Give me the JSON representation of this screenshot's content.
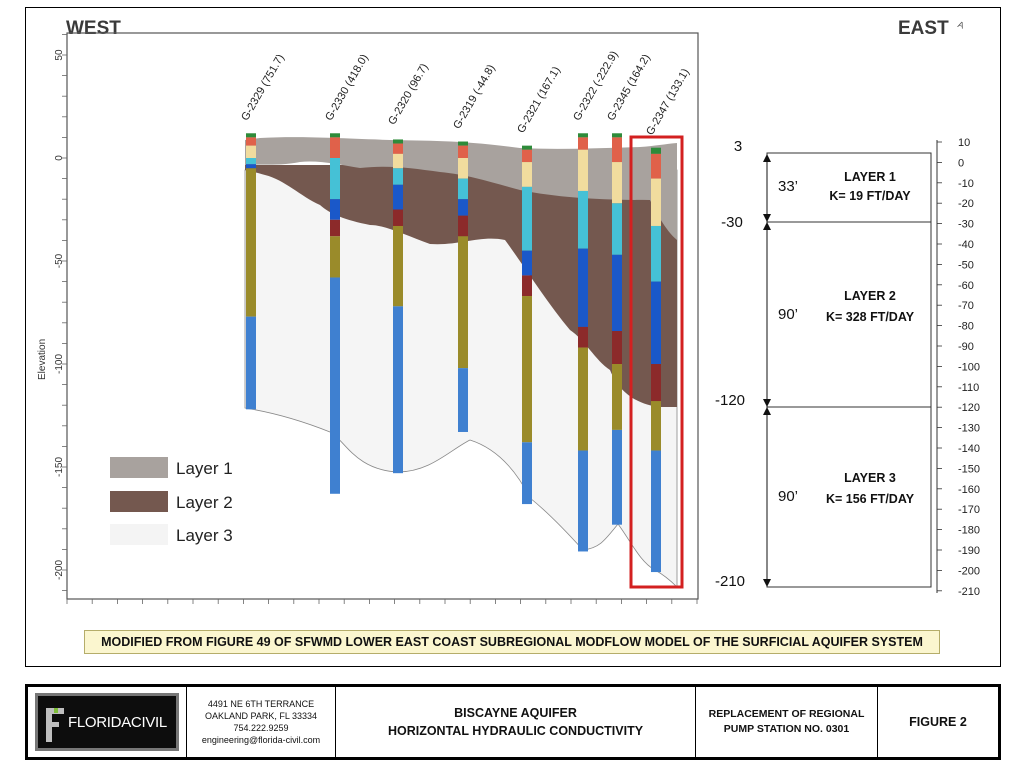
{
  "header": {
    "west": "WEST",
    "east": "EAST",
    "north_mark": "A"
  },
  "y_axis": {
    "label": "Elevation",
    "ticks": [
      50,
      0,
      -50,
      -100,
      -150,
      -200
    ]
  },
  "wells": [
    {
      "label": "G-2329 (751.7)",
      "top": 10,
      "bottom": -122,
      "colors": [
        [
          "#2e8b3a",
          12,
          10
        ],
        [
          "#e0614a",
          10,
          6
        ],
        [
          "#f1dc9e",
          6,
          0
        ],
        [
          "#45c1d6",
          0,
          -3
        ],
        [
          "#1a58c9",
          -3,
          -5
        ],
        [
          "#9a8b2a",
          -5,
          -77
        ],
        [
          "#3f80d0",
          -77,
          -122
        ]
      ]
    },
    {
      "label": "G-2330 (418.0)",
      "top": 10,
      "bottom": -163,
      "colors": [
        [
          "#2e8b3a",
          12,
          10
        ],
        [
          "#e0614a",
          10,
          0
        ],
        [
          "#f1dc9e",
          0,
          -10
        ],
        [
          "#45c1d6",
          0,
          -20
        ],
        [
          "#1a58c9",
          -20,
          -30
        ],
        [
          "#8c2a2a",
          -30,
          -38
        ],
        [
          "#9a8b2a",
          -38,
          -58
        ],
        [
          "#3f80d0",
          -58,
          -163
        ]
      ]
    },
    {
      "label": "G-2320 (96.7)",
      "top": 8,
      "bottom": -153,
      "colors": [
        [
          "#2e8b3a",
          9,
          7
        ],
        [
          "#e0614a",
          7,
          2
        ],
        [
          "#f1dc9e",
          2,
          -5
        ],
        [
          "#45c1d6",
          -5,
          -13
        ],
        [
          "#1a58c9",
          -13,
          -25
        ],
        [
          "#8c2a2a",
          -25,
          -33
        ],
        [
          "#9a8b2a",
          -33,
          -72
        ],
        [
          "#3f80d0",
          -72,
          -153
        ]
      ]
    },
    {
      "label": "G-2319 (-44.8)",
      "top": 6,
      "bottom": -133,
      "colors": [
        [
          "#2e8b3a",
          8,
          6
        ],
        [
          "#e0614a",
          6,
          0
        ],
        [
          "#f1dc9e",
          0,
          -10
        ],
        [
          "#45c1d6",
          -10,
          -20
        ],
        [
          "#1a58c9",
          -20,
          -28
        ],
        [
          "#8c2a2a",
          -28,
          -38
        ],
        [
          "#9a8b2a",
          -38,
          -102
        ],
        [
          "#3f80d0",
          -102,
          -133
        ]
      ]
    },
    {
      "label": "G-2321 (167.1)",
      "top": 4,
      "bottom": -168,
      "colors": [
        [
          "#2e8b3a",
          6,
          4
        ],
        [
          "#e0614a",
          4,
          -2
        ],
        [
          "#f1dc9e",
          -2,
          -14
        ],
        [
          "#45c1d6",
          -14,
          -45
        ],
        [
          "#1a58c9",
          -45,
          -57
        ],
        [
          "#8c2a2a",
          -57,
          -67
        ],
        [
          "#9a8b2a",
          -67,
          -138
        ],
        [
          "#3f80d0",
          -138,
          -168
        ]
      ]
    },
    {
      "label": "G-2322 (-222.9)",
      "top": 10,
      "bottom": -191,
      "colors": [
        [
          "#2e8b3a",
          12,
          10
        ],
        [
          "#e0614a",
          10,
          4
        ],
        [
          "#f1dc9e",
          4,
          -16
        ],
        [
          "#45c1d6",
          -16,
          -44
        ],
        [
          "#1a58c9",
          -44,
          -82
        ],
        [
          "#8c2a2a",
          -82,
          -92
        ],
        [
          "#9a8b2a",
          -92,
          -142
        ],
        [
          "#3f80d0",
          -142,
          -191
        ]
      ]
    },
    {
      "label": "G-2345 (164.2)",
      "top": 10,
      "bottom": -178,
      "colors": [
        [
          "#2e8b3a",
          12,
          10
        ],
        [
          "#e0614a",
          10,
          -2
        ],
        [
          "#f1dc9e",
          -2,
          -22
        ],
        [
          "#45c1d6",
          -22,
          -47
        ],
        [
          "#1a58c9",
          -47,
          -84
        ],
        [
          "#8c2a2a",
          -84,
          -100
        ],
        [
          "#9a8b2a",
          -100,
          -132
        ],
        [
          "#3f80d0",
          -132,
          -178
        ]
      ]
    },
    {
      "label": "G-2347 (133.1)",
      "top": 3,
      "bottom": -203,
      "colors": [
        [
          "#2e8b3a",
          5,
          2
        ],
        [
          "#e0614a",
          2,
          -10
        ],
        [
          "#f1dc9e",
          -10,
          -33
        ],
        [
          "#45c1d6",
          -33,
          -60
        ],
        [
          "#1a58c9",
          -60,
          -100
        ],
        [
          "#8c2a2a",
          -100,
          -118
        ],
        [
          "#9a8b2a",
          -118,
          -142
        ],
        [
          "#3f80d0",
          -142,
          -201
        ]
      ]
    }
  ],
  "legend": [
    {
      "label": "Layer 1",
      "color": "#a8a29e"
    },
    {
      "label": "Layer 2",
      "color": "#74584f"
    },
    {
      "label": "Layer 3",
      "color": "#f4f4f4"
    }
  ],
  "right_scale": {
    "ticks": [
      10,
      0,
      -10,
      -20,
      -30,
      -40,
      -50,
      -60,
      -70,
      -80,
      -90,
      -100,
      -110,
      -120,
      -130,
      -140,
      -150,
      -160,
      -170,
      -180,
      -190,
      -200,
      -210
    ]
  },
  "layers": [
    {
      "name": "LAYER 1",
      "k": "K= 19 FT/DAY",
      "thickness": "33’",
      "top_label": "3",
      "bottom_label": "-30"
    },
    {
      "name": "LAYER 2",
      "k": "K= 328 FT/DAY",
      "thickness": "90’",
      "bottom_label": "-120"
    },
    {
      "name": "LAYER 3",
      "k": "K= 156 FT/DAY",
      "thickness": "90’",
      "bottom_label": "-210"
    }
  ],
  "highlight_color": "#d32020",
  "caption": "MODIFIED FROM FIGURE 49 OF SFWMD LOWER EAST COAST SUBREGIONAL MODFLOW MODEL OF THE SURFICIAL AQUIFER SYSTEM",
  "title_block": {
    "logo_text_a": "FLORIDA",
    "logo_text_b": "CIVIL",
    "address": [
      "4491 NE 6TH TERRANCE",
      "OAKLAND PARK, FL 33334",
      "754.222.9259",
      "engineering@florida-civil.com"
    ],
    "title": [
      "BISCAYNE AQUIFER",
      "HORIZONTAL HYDRAULIC CONDUCTIVITY"
    ],
    "project": [
      "REPLACEMENT OF REGIONAL",
      "PUMP STATION NO. 0301"
    ],
    "figure": "FIGURE 2"
  }
}
